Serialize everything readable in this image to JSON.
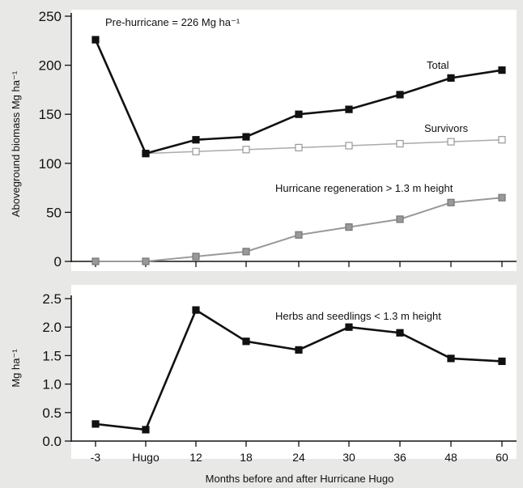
{
  "chart_data": [
    {
      "type": "line",
      "ylabel": "Aboveground biomass Mg ha⁻¹",
      "ylim": [
        0,
        250
      ],
      "yticks": [
        "0",
        "50",
        "100",
        "150",
        "200",
        "250"
      ],
      "categories": [
        "-3",
        "Hugo",
        "12",
        "18",
        "24",
        "30",
        "36",
        "48",
        "60"
      ],
      "annotation": "Pre-hurricane = 226 Mg ha⁻¹",
      "series": [
        {
          "name": "Total",
          "values": [
            226,
            110,
            124,
            127,
            150,
            155,
            170,
            187,
            195
          ],
          "color": "#111111",
          "marker": "filled-square"
        },
        {
          "name": "Survivors",
          "values": [
            null,
            110,
            112,
            114,
            116,
            118,
            120,
            122,
            124
          ],
          "color": "#aaaaaa",
          "marker": "open-square"
        },
        {
          "name": "Hurricane regeneration > 1.3 m height",
          "values": [
            0,
            0,
            5,
            10,
            27,
            35,
            43,
            60,
            65
          ],
          "color": "#999999",
          "marker": "gray-square"
        }
      ]
    },
    {
      "type": "line",
      "ylabel": "Mg ha⁻¹",
      "ylim": [
        0,
        2.5
      ],
      "yticks": [
        "0.0",
        "0.5",
        "1.0",
        "1.5",
        "2.0",
        "2.5"
      ],
      "categories": [
        "-3",
        "Hugo",
        "12",
        "18",
        "24",
        "30",
        "36",
        "48",
        "60"
      ],
      "xlabel": "Months before and after Hurricane Hugo",
      "series": [
        {
          "name": "Herbs and seedlings < 1.3 m height",
          "values": [
            0.3,
            0.2,
            2.3,
            1.75,
            1.6,
            2.0,
            1.9,
            1.45,
            1.4
          ],
          "color": "#111111",
          "marker": "filled-square"
        }
      ]
    }
  ]
}
